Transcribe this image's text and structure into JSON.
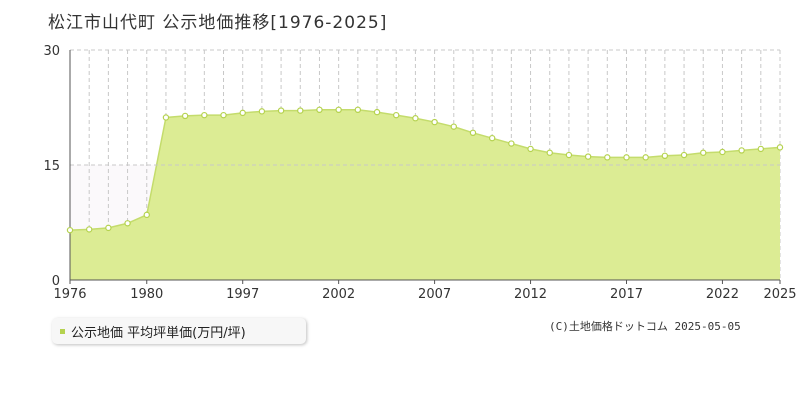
{
  "title": "松江市山代町 公示地価推移[1976-2025]",
  "legend": {
    "label": "公示地価 平均坪単価(万円/坪)"
  },
  "credit": "(C)土地価格ドットコム 2025-05-05",
  "colors": {
    "fill": "#dcec94",
    "line": "#c4dc6c",
    "marker": "#b5d24f",
    "grid": "#c8c8c8",
    "axis": "#555555"
  },
  "chart_data": {
    "type": "area",
    "title": "松江市山代町 公示地価推移[1976-2025]",
    "xlabel": "",
    "ylabel": "",
    "ylim": [
      0,
      30
    ],
    "yticks": [
      0,
      15,
      30
    ],
    "xtick_labels": [
      "1976",
      "1980",
      "1997",
      "2002",
      "2007",
      "2012",
      "2017",
      "2022",
      "2025"
    ],
    "grid": true,
    "legend_position": "bottom-left",
    "series": [
      {
        "name": "公示地価 平均坪単価(万円/坪)",
        "points": [
          [
            "1976",
            6.5
          ],
          [
            "1977",
            6.6
          ],
          [
            "1978",
            6.8
          ],
          [
            "1979",
            7.4
          ],
          [
            "1980",
            8.5
          ],
          [
            "1981",
            21.2
          ],
          [
            "1982",
            21.4
          ],
          [
            "1983",
            21.5
          ],
          [
            "1984",
            21.5
          ],
          [
            "1997",
            21.8
          ],
          [
            "1998",
            22.0
          ],
          [
            "1999",
            22.1
          ],
          [
            "2000",
            22.1
          ],
          [
            "2001",
            22.2
          ],
          [
            "2002",
            22.2
          ],
          [
            "2003",
            22.2
          ],
          [
            "2004",
            21.9
          ],
          [
            "2005",
            21.5
          ],
          [
            "2006",
            21.1
          ],
          [
            "2007",
            20.6
          ],
          [
            "2008",
            20.0
          ],
          [
            "2009",
            19.2
          ],
          [
            "2010",
            18.5
          ],
          [
            "2011",
            17.8
          ],
          [
            "2012",
            17.1
          ],
          [
            "2013",
            16.6
          ],
          [
            "2014",
            16.3
          ],
          [
            "2015",
            16.1
          ],
          [
            "2016",
            16.0
          ],
          [
            "2017",
            16.0
          ],
          [
            "2018",
            16.0
          ],
          [
            "2019",
            16.2
          ],
          [
            "2020",
            16.3
          ],
          [
            "2021",
            16.6
          ],
          [
            "2022",
            16.7
          ],
          [
            "2023",
            16.9
          ],
          [
            "2024",
            17.1
          ],
          [
            "2025",
            17.3
          ]
        ]
      }
    ]
  }
}
